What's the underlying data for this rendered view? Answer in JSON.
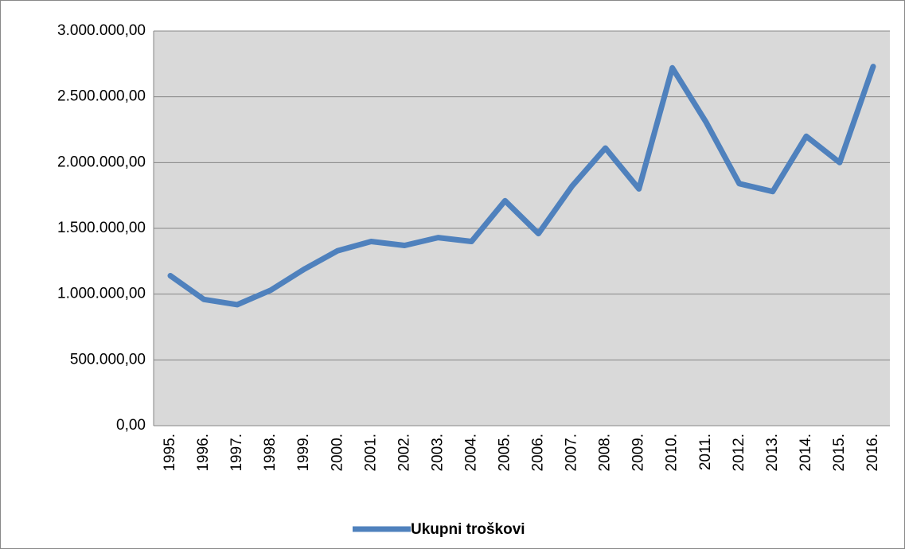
{
  "chart_data": {
    "type": "line",
    "categories": [
      "1995.",
      "1996.",
      "1997.",
      "1998.",
      "1999.",
      "2000.",
      "2001.",
      "2002.",
      "2003.",
      "2004.",
      "2005.",
      "2006.",
      "2007.",
      "2008.",
      "2009.",
      "2010.",
      "2011.",
      "2012.",
      "2013.",
      "2014.",
      "2015.",
      "2016."
    ],
    "series": [
      {
        "name": "Ukupni troškovi",
        "color": "#4f81bd",
        "values": [
          1140000,
          960000,
          920000,
          1030000,
          1190000,
          1330000,
          1400000,
          1370000,
          1430000,
          1400000,
          1710000,
          1460000,
          1820000,
          2110000,
          1800000,
          2720000,
          2310000,
          1840000,
          1780000,
          2200000,
          2000000,
          2730000
        ]
      }
    ],
    "ylim": [
      0,
      3000000
    ],
    "yticks": [
      {
        "value": 0,
        "label": "0,00"
      },
      {
        "value": 500000,
        "label": "500.000,00"
      },
      {
        "value": 1000000,
        "label": "1.000.000,00"
      },
      {
        "value": 1500000,
        "label": "1.500.000,00"
      },
      {
        "value": 2000000,
        "label": "2.000.000,00"
      },
      {
        "value": 2500000,
        "label": "2.500.000,00"
      },
      {
        "value": 3000000,
        "label": "3.000.000,00"
      }
    ],
    "grid": true,
    "legend": "bottom"
  }
}
